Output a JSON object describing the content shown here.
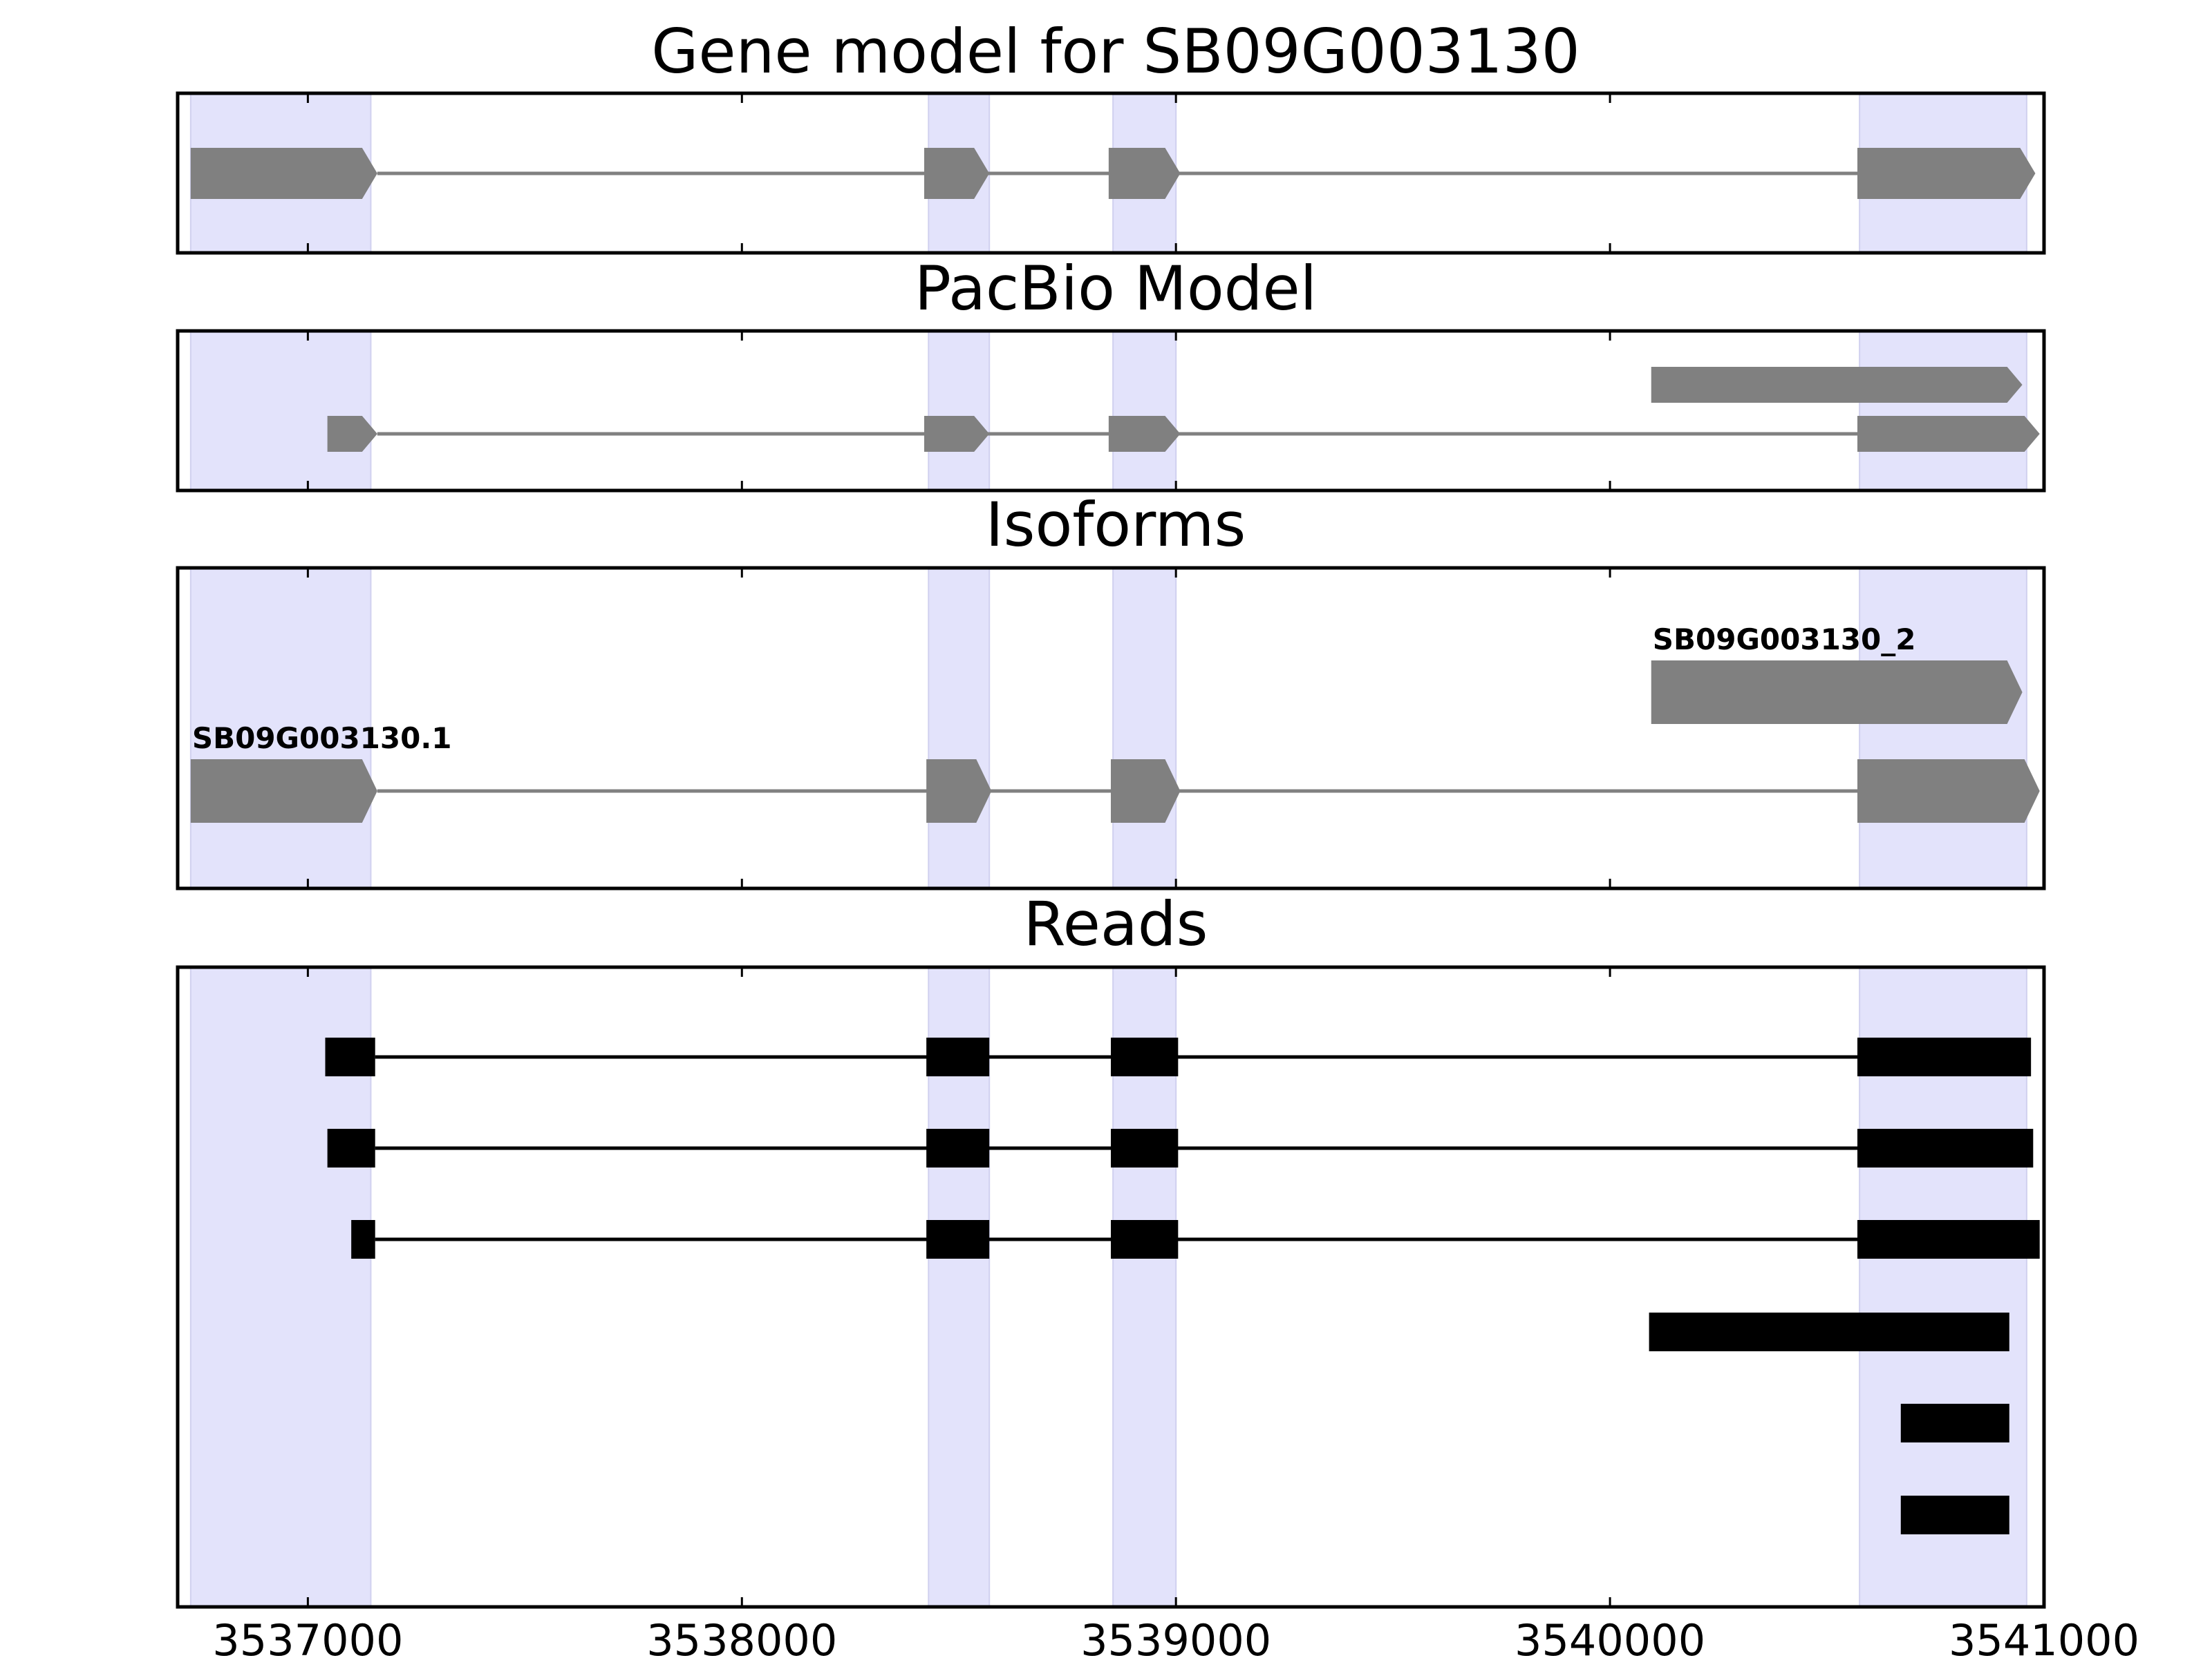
{
  "chart_data": {
    "type": "gene-track",
    "xlim": [
      3536700,
      3541000
    ],
    "x_ticks": [
      3537000,
      3538000,
      3539000,
      3540000,
      3541000
    ],
    "x_tick_labels": [
      "3537000",
      "3538000",
      "3539000",
      "3540000",
      "3541000"
    ],
    "exon_highlights": [
      [
        3536730,
        3537145
      ],
      [
        3538430,
        3538570
      ],
      [
        3538855,
        3539000
      ],
      [
        3540575,
        3540960
      ]
    ],
    "panels": [
      {
        "id": "gene-model",
        "title": "Gene model for SB09G003130",
        "features": [
          {
            "style": "arrow",
            "lane": 0,
            "label": "",
            "exons": [
              [
                3536730,
                3537160
              ],
              [
                3538420,
                3538570
              ],
              [
                3538845,
                3539010
              ],
              [
                3540570,
                3540980
              ]
            ]
          }
        ]
      },
      {
        "id": "pacbio-model",
        "title": "PacBio Model",
        "features": [
          {
            "style": "arrow",
            "lane": 0,
            "label": "",
            "exons": [
              [
                3540095,
                3540950
              ]
            ]
          },
          {
            "style": "arrow",
            "lane": 1,
            "label": "",
            "exons": [
              [
                3537045,
                3537160
              ],
              [
                3538420,
                3538570
              ],
              [
                3538845,
                3539010
              ],
              [
                3540570,
                3540990
              ]
            ]
          }
        ]
      },
      {
        "id": "isoforms",
        "title": "Isoforms",
        "features": [
          {
            "style": "arrow",
            "lane": 0,
            "label": "SB09G003130_2",
            "exons": [
              [
                3540095,
                3540950
              ]
            ]
          },
          {
            "style": "arrow",
            "lane": 1,
            "label": "SB09G003130.1",
            "exons": [
              [
                3536730,
                3537160
              ],
              [
                3538425,
                3538575
              ],
              [
                3538850,
                3539010
              ],
              [
                3540570,
                3540990
              ]
            ]
          }
        ]
      },
      {
        "id": "reads",
        "title": "Reads",
        "features": [
          {
            "style": "block",
            "lane": 0,
            "label": "",
            "exons": [
              [
                3537040,
                3537155
              ],
              [
                3538425,
                3538570
              ],
              [
                3538850,
                3539005
              ],
              [
                3540570,
                3540970
              ]
            ]
          },
          {
            "style": "block",
            "lane": 1,
            "label": "",
            "exons": [
              [
                3537045,
                3537155
              ],
              [
                3538425,
                3538570
              ],
              [
                3538850,
                3539005
              ],
              [
                3540570,
                3540975
              ]
            ]
          },
          {
            "style": "block",
            "lane": 2,
            "label": "",
            "exons": [
              [
                3537100,
                3537155
              ],
              [
                3538425,
                3538570
              ],
              [
                3538850,
                3539005
              ],
              [
                3540570,
                3540990
              ]
            ]
          },
          {
            "style": "block",
            "lane": 3,
            "label": "",
            "exons": [
              [
                3540090,
                3540920
              ]
            ]
          },
          {
            "style": "block",
            "lane": 4,
            "label": "",
            "exons": [
              [
                3540670,
                3540920
              ]
            ]
          },
          {
            "style": "block",
            "lane": 5,
            "label": "",
            "exons": [
              [
                3540670,
                3540920
              ]
            ]
          }
        ]
      }
    ]
  },
  "colors": {
    "highlight": "#e3e3fb",
    "highlight_edge": "#d0d0ef",
    "model_feature": "#808080",
    "read_feature": "#000000",
    "axis": "#000000"
  }
}
